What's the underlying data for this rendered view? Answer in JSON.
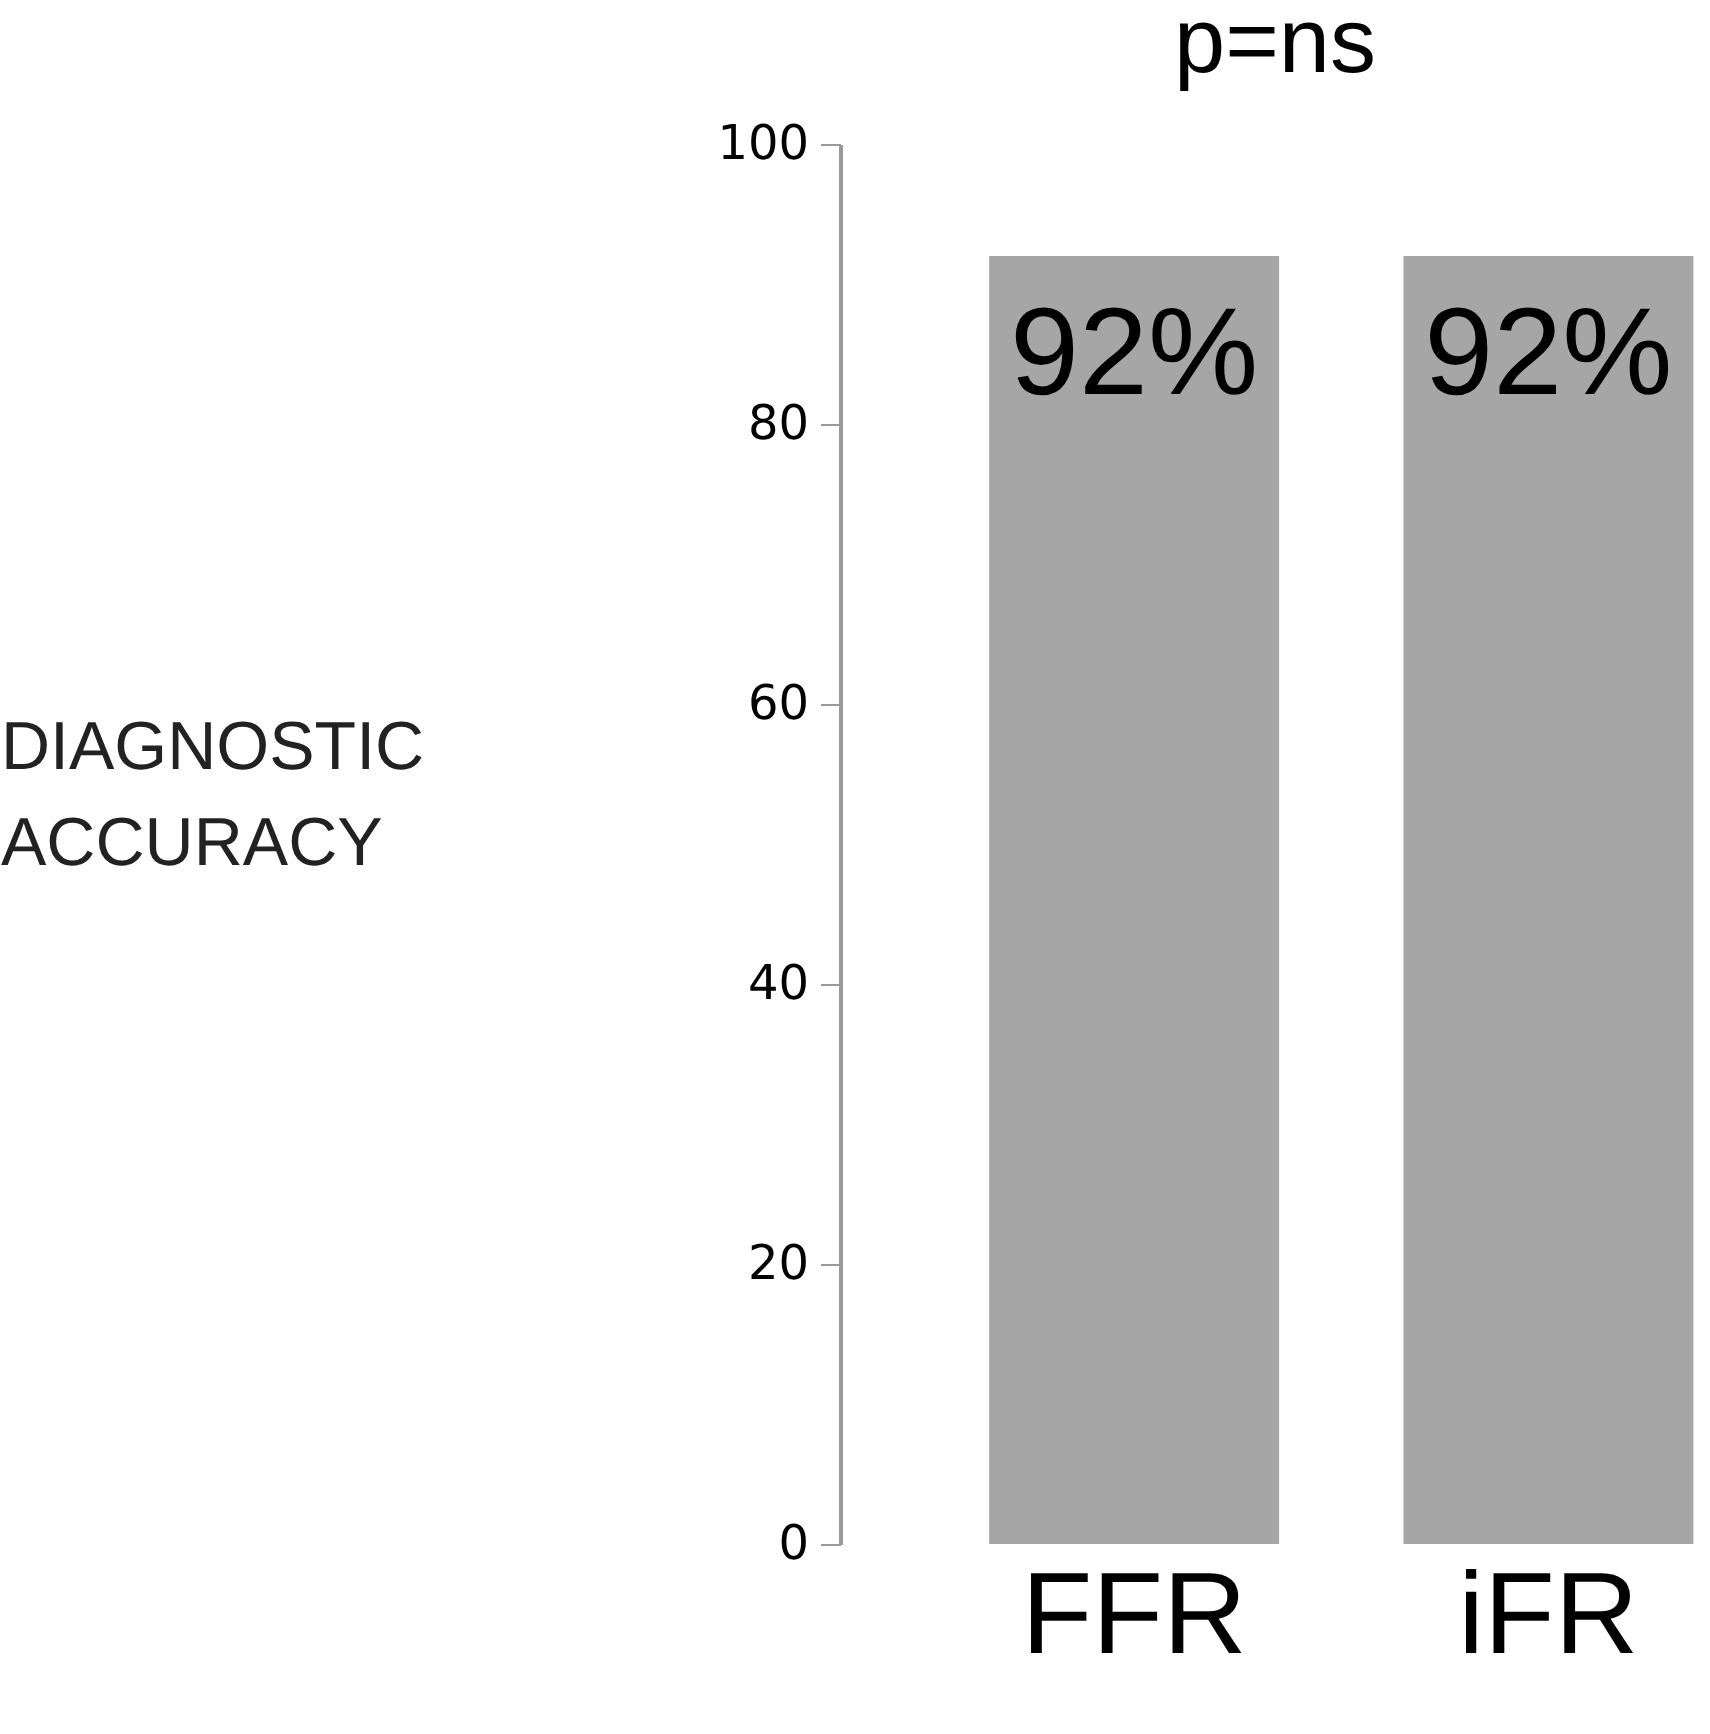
{
  "chart_data": {
    "type": "bar",
    "title": "p=ns",
    "ylabel": [
      "DIAGNOSTIC",
      "ACCURACY"
    ],
    "categories": [
      "FFR",
      "iFR"
    ],
    "values": [
      92,
      92
    ],
    "color": "#a6a6a6",
    "value_labels": [
      "92%",
      "92%"
    ],
    "ylim": [
      0,
      100
    ],
    "yticks": [
      0,
      20,
      40,
      60,
      80,
      100
    ],
    "grid": false
  }
}
